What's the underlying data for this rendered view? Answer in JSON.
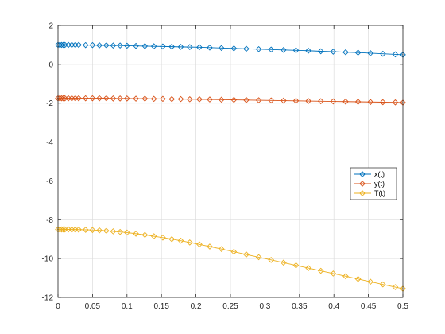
{
  "chart_data": {
    "type": "line",
    "grid": true,
    "legend_position": "right",
    "xlim": [
      0,
      0.5
    ],
    "ylim": [
      -12,
      2
    ],
    "x_ticks": [
      0,
      0.05,
      0.1,
      0.15,
      0.2,
      0.25,
      0.3,
      0.35,
      0.4,
      0.45,
      0.5
    ],
    "x_tick_labels": [
      "0",
      "0.05",
      "0.1",
      "0.15",
      "0.2",
      "0.25",
      "0.3",
      "0.35",
      "0.4",
      "0.45",
      "0.5"
    ],
    "y_ticks": [
      -12,
      -10,
      -8,
      -6,
      -4,
      -2,
      0,
      2
    ],
    "y_tick_labels": [
      "-12",
      "-10",
      "-8",
      "-6",
      "-4",
      "-2",
      "0",
      "2"
    ],
    "x": [
      0,
      0.0025,
      0.005,
      0.0075,
      0.01,
      0.015,
      0.02,
      0.025,
      0.03,
      0.04,
      0.05,
      0.06,
      0.07,
      0.08,
      0.09,
      0.1,
      0.113,
      0.126,
      0.139,
      0.152,
      0.165,
      0.178,
      0.191,
      0.205,
      0.22,
      0.237,
      0.255,
      0.273,
      0.291,
      0.309,
      0.327,
      0.345,
      0.363,
      0.381,
      0.399,
      0.417,
      0.435,
      0.453,
      0.471,
      0.489,
      0.5
    ],
    "series": [
      {
        "name": "x(t)",
        "color": "#0072BD",
        "values": [
          1.0,
          1.0,
          1.0,
          1.0,
          1.0,
          1.0,
          1.0,
          1.0,
          1.0,
          0.99,
          0.99,
          0.98,
          0.98,
          0.97,
          0.97,
          0.96,
          0.95,
          0.94,
          0.93,
          0.92,
          0.91,
          0.9,
          0.89,
          0.88,
          0.86,
          0.84,
          0.82,
          0.8,
          0.78,
          0.76,
          0.74,
          0.72,
          0.7,
          0.67,
          0.65,
          0.62,
          0.6,
          0.57,
          0.54,
          0.51,
          0.49
        ]
      },
      {
        "name": "y(t)",
        "color": "#D95319",
        "values": [
          -1.75,
          -1.75,
          -1.75,
          -1.75,
          -1.75,
          -1.75,
          -1.75,
          -1.75,
          -1.75,
          -1.75,
          -1.75,
          -1.75,
          -1.75,
          -1.76,
          -1.76,
          -1.76,
          -1.77,
          -1.77,
          -1.78,
          -1.78,
          -1.79,
          -1.79,
          -1.8,
          -1.8,
          -1.81,
          -1.82,
          -1.83,
          -1.84,
          -1.85,
          -1.86,
          -1.87,
          -1.88,
          -1.89,
          -1.9,
          -1.91,
          -1.92,
          -1.93,
          -1.94,
          -1.95,
          -1.96,
          -1.97
        ]
      },
      {
        "name": "T(t)",
        "color": "#EDB120",
        "values": [
          -8.5,
          -8.5,
          -8.5,
          -8.5,
          -8.5,
          -8.5,
          -8.51,
          -8.51,
          -8.51,
          -8.52,
          -8.53,
          -8.55,
          -8.57,
          -8.6,
          -8.63,
          -8.66,
          -8.72,
          -8.78,
          -8.85,
          -8.92,
          -9.0,
          -9.08,
          -9.17,
          -9.27,
          -9.38,
          -9.51,
          -9.65,
          -9.79,
          -9.93,
          -10.07,
          -10.21,
          -10.35,
          -10.49,
          -10.63,
          -10.77,
          -10.91,
          -11.05,
          -11.19,
          -11.33,
          -11.47,
          -11.55
        ]
      }
    ]
  }
}
